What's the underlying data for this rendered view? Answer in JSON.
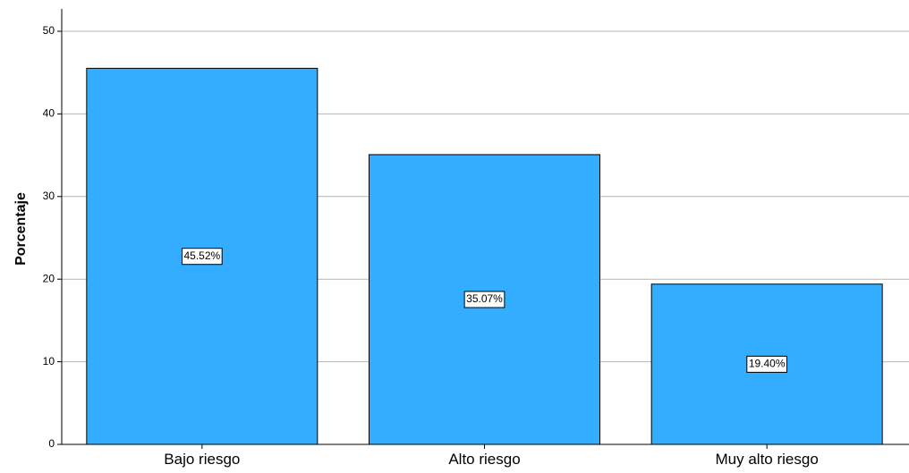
{
  "chart_data": {
    "type": "bar",
    "categories": [
      "Bajo riesgo",
      "Alto riesgo",
      "Muy alto riesgo"
    ],
    "values": [
      45.52,
      35.07,
      19.4
    ],
    "data_labels": [
      "45.52%",
      "35.07%",
      "19.40%"
    ],
    "title": "",
    "xlabel": "",
    "ylabel": "Porcentaje",
    "ylim": [
      0,
      50
    ],
    "yticks": [
      0,
      10,
      20,
      30,
      40,
      50
    ],
    "grid": true,
    "bar_color": "#33adff",
    "bar_edge_color": "#000000",
    "grid_color": "#b4b4b4"
  }
}
